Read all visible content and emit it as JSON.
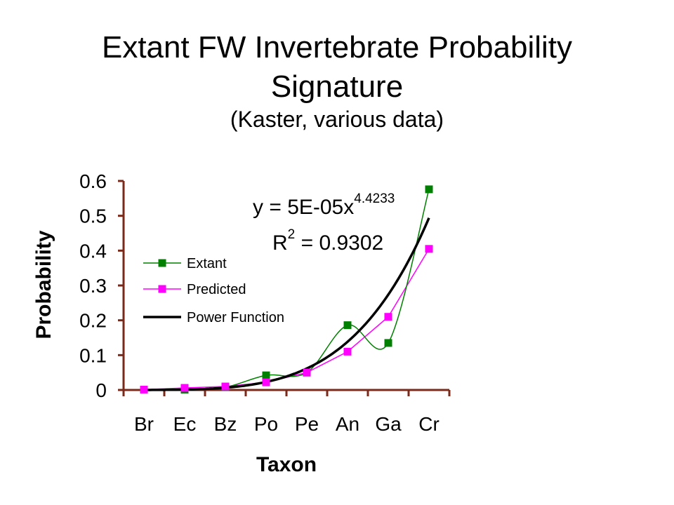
{
  "chart_data": {
    "type": "line",
    "title": "Extant FW Invertebrate Probability",
    "title_line2": "Signature",
    "subtitle": "(Kaster, various data)",
    "xlabel": "Taxon",
    "ylabel": "Probability",
    "categories": [
      "Br",
      "Ec",
      "Bz",
      "Po",
      "Pe",
      "An",
      "Ga",
      "Cr"
    ],
    "ylim": [
      0,
      0.6
    ],
    "yticks": [
      "0",
      "0.1",
      "0.2",
      "0.3",
      "0.4",
      "0.5",
      "0.6"
    ],
    "grid": false,
    "legend_position": "upper-left-inside",
    "series": [
      {
        "name": "Extant",
        "color": "#008000",
        "marker": "square",
        "values": [
          null,
          0.001,
          0.008,
          0.042,
          0.05,
          0.186,
          0.135,
          0.576
        ]
      },
      {
        "name": "Predicted",
        "color": "#ff00ff",
        "marker": "square",
        "values": [
          0.001,
          0.006,
          0.01,
          0.022,
          0.05,
          0.11,
          0.21,
          0.405
        ]
      },
      {
        "name": "Power Function",
        "color": "#000000",
        "marker": "none",
        "trendline": true
      }
    ],
    "equation": {
      "prefix": "y = 5E-05x",
      "exponent": "4.4233",
      "r2_prefix": "R",
      "r2_exp": "2",
      "r2_value": " = 0.9302"
    },
    "axis_color": "#7a2a1a"
  }
}
